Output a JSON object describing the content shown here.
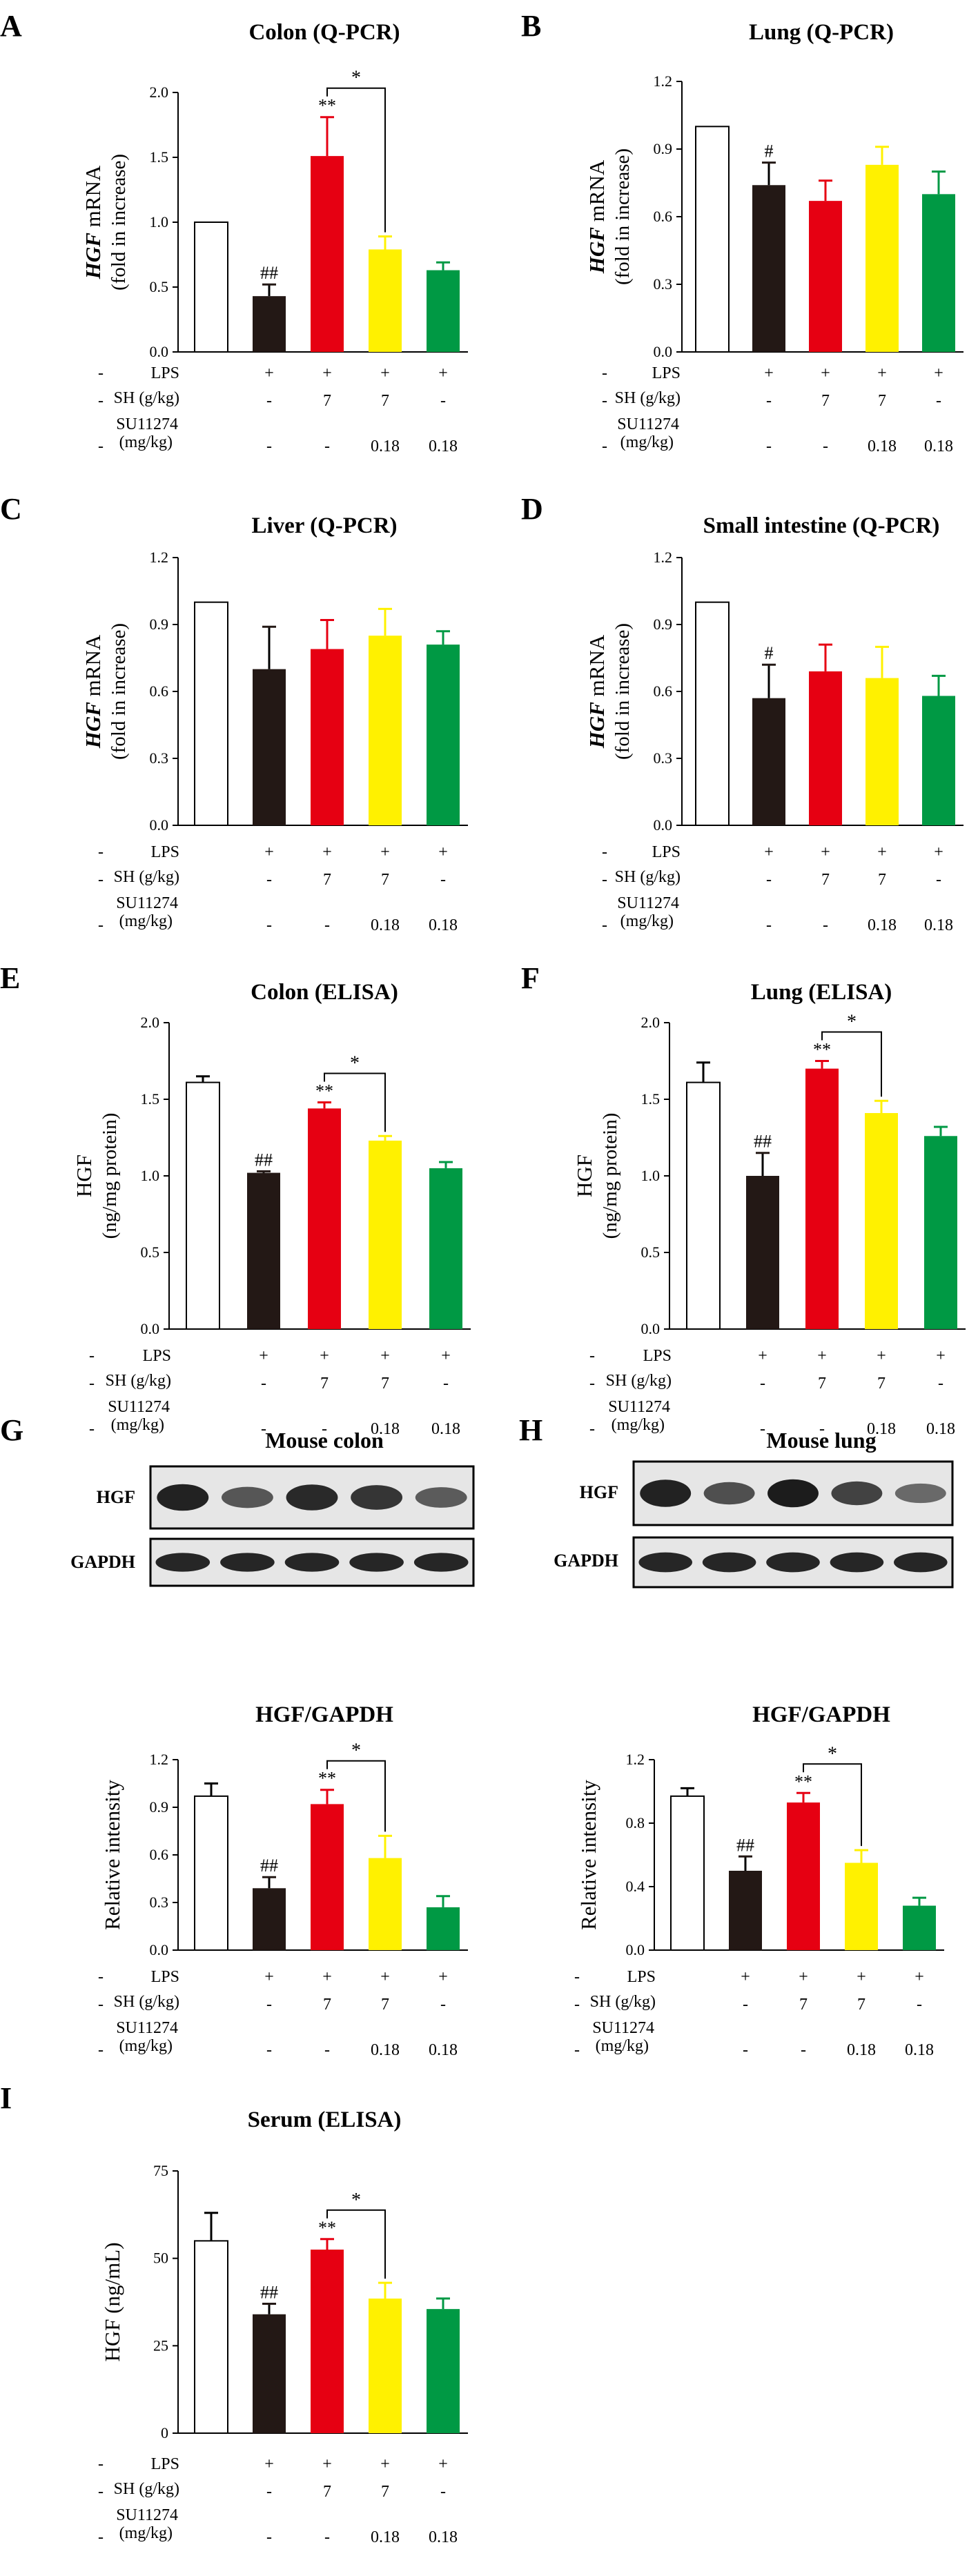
{
  "colors": {
    "control": "#ffffff",
    "lps": "#231815",
    "sh": "#e60012",
    "sh_su": "#fff100",
    "su": "#009944"
  },
  "treatments": {
    "row_labels": [
      "LPS",
      "SH (g/kg)",
      "SU11274",
      "(mg/kg)"
    ],
    "lps": [
      "-",
      "+",
      "+",
      "+",
      "+"
    ],
    "sh": [
      "-",
      "-",
      "7",
      "7",
      "-"
    ],
    "su": [
      "-",
      "-",
      "-",
      "0.18",
      "0.18"
    ]
  },
  "blot_labels": {
    "hgf": "HGF",
    "gapdh": "GAPDH"
  },
  "chart_data": [
    {
      "type": "bar",
      "panel": "A",
      "title": "Colon (Q-PCR)",
      "ylabel_italic": "HGF",
      "ylabel_rest": " mRNA",
      "ylabel2": "(fold in increase)",
      "ylim": [
        0,
        2.0
      ],
      "yticks": [
        "0.0",
        "0.5",
        "1.0",
        "1.5",
        "2.0"
      ],
      "values": [
        1.0,
        0.43,
        1.51,
        0.79,
        0.63
      ],
      "errors": [
        0,
        0.09,
        0.3,
        0.1,
        0.06
      ],
      "marks": [
        "",
        "##",
        "**",
        "",
        ""
      ],
      "brackets": [
        {
          "from": 2,
          "to": 3,
          "label": "*"
        }
      ]
    },
    {
      "type": "bar",
      "panel": "B",
      "title": "Lung (Q-PCR)",
      "ylabel_italic": "HGF",
      "ylabel_rest": " mRNA",
      "ylabel2": "(fold in increase)",
      "ylim": [
        0,
        1.2
      ],
      "yticks": [
        "0.0",
        "0.3",
        "0.6",
        "0.9",
        "1.2"
      ],
      "values": [
        1.0,
        0.74,
        0.67,
        0.83,
        0.7
      ],
      "errors": [
        0,
        0.1,
        0.09,
        0.08,
        0.1
      ],
      "marks": [
        "",
        "#",
        "",
        "",
        ""
      ],
      "brackets": []
    },
    {
      "type": "bar",
      "panel": "C",
      "title": "Liver (Q-PCR)",
      "ylabel_italic": "HGF",
      "ylabel_rest": " mRNA",
      "ylabel2": "(fold in increase)",
      "ylim": [
        0,
        1.2
      ],
      "yticks": [
        "0.0",
        "0.3",
        "0.6",
        "0.9",
        "1.2"
      ],
      "values": [
        1.0,
        0.7,
        0.79,
        0.85,
        0.81
      ],
      "errors": [
        0,
        0.19,
        0.13,
        0.12,
        0.06
      ],
      "marks": [
        "",
        "",
        "",
        "",
        ""
      ],
      "brackets": []
    },
    {
      "type": "bar",
      "panel": "D",
      "title": "Small intestine (Q-PCR)",
      "ylabel_italic": "HGF",
      "ylabel_rest": " mRNA",
      "ylabel2": "(fold in increase)",
      "ylim": [
        0,
        1.2
      ],
      "yticks": [
        "0.0",
        "0.3",
        "0.6",
        "0.9",
        "1.2"
      ],
      "values": [
        1.0,
        0.57,
        0.69,
        0.66,
        0.58
      ],
      "errors": [
        0,
        0.15,
        0.12,
        0.14,
        0.09
      ],
      "marks": [
        "",
        "#",
        "",
        "",
        ""
      ],
      "brackets": []
    },
    {
      "type": "bar",
      "panel": "E",
      "title": "Colon (ELISA)",
      "ylabel_plain": "HGF",
      "ylabel2": "(ng/mg protein)",
      "ylim": [
        0,
        2.0
      ],
      "yticks": [
        "0.0",
        "0.5",
        "1.0",
        "1.5",
        "2.0"
      ],
      "values": [
        1.61,
        1.02,
        1.44,
        1.23,
        1.05
      ],
      "errors": [
        0.04,
        0.01,
        0.04,
        0.03,
        0.04
      ],
      "marks": [
        "",
        "##",
        "**",
        "",
        ""
      ],
      "brackets": [
        {
          "from": 2,
          "to": 3,
          "label": "*"
        }
      ]
    },
    {
      "type": "bar",
      "panel": "F",
      "title": "Lung (ELISA)",
      "ylabel_plain": "HGF",
      "ylabel2": "(ng/mg protein)",
      "ylim": [
        0,
        2.0
      ],
      "yticks": [
        "0.0",
        "0.5",
        "1.0",
        "1.5",
        "2.0"
      ],
      "values": [
        1.61,
        1.0,
        1.7,
        1.41,
        1.26
      ],
      "errors": [
        0.13,
        0.15,
        0.05,
        0.08,
        0.06
      ],
      "marks": [
        "",
        "##",
        "**",
        "",
        ""
      ],
      "brackets": [
        {
          "from": 2,
          "to": 3,
          "label": "*"
        }
      ]
    },
    {
      "type": "bar",
      "panel": "G",
      "blot_title": "Mouse colon",
      "title": "HGF/GAPDH",
      "ylabel_plain": "Relative intensity",
      "ylim": [
        0,
        1.2
      ],
      "yticks": [
        "0.0",
        "0.3",
        "0.6",
        "0.9",
        "1.2"
      ],
      "values": [
        0.97,
        0.39,
        0.92,
        0.58,
        0.27
      ],
      "errors": [
        0.08,
        0.07,
        0.09,
        0.14,
        0.07
      ],
      "marks": [
        "",
        "##",
        "**",
        "",
        ""
      ],
      "brackets": [
        {
          "from": 2,
          "to": 3,
          "label": "*"
        }
      ],
      "hgf_band_intensity": [
        0.95,
        0.55,
        0.9,
        0.8,
        0.5
      ]
    },
    {
      "type": "bar",
      "panel": "H",
      "blot_title": "Mouse lung",
      "title": "HGF/GAPDH",
      "ylabel_plain": "Relative intensity",
      "ylim": [
        0,
        1.2
      ],
      "yticks": [
        "0.0",
        "0.4",
        "0.8",
        "1.2"
      ],
      "values": [
        0.97,
        0.5,
        0.93,
        0.55,
        0.28
      ],
      "errors": [
        0.05,
        0.09,
        0.06,
        0.08,
        0.05
      ],
      "marks": [
        "",
        "##",
        "**",
        "",
        ""
      ],
      "brackets": [
        {
          "from": 2,
          "to": 3,
          "label": "*"
        }
      ],
      "hgf_band_intensity": [
        0.95,
        0.6,
        1.0,
        0.7,
        0.4
      ]
    },
    {
      "type": "bar",
      "panel": "I",
      "title": "Serum (ELISA)",
      "ylabel_plain": "HGF (ng/mL)",
      "ylim": [
        0,
        75
      ],
      "yticks": [
        "0",
        "25",
        "50",
        "75"
      ],
      "values": [
        55,
        34,
        52.5,
        38.5,
        35.5
      ],
      "errors": [
        8,
        3,
        3,
        4.5,
        3
      ],
      "marks": [
        "",
        "##",
        "**",
        "",
        ""
      ],
      "brackets": [
        {
          "from": 2,
          "to": 3,
          "label": "*"
        }
      ]
    }
  ]
}
